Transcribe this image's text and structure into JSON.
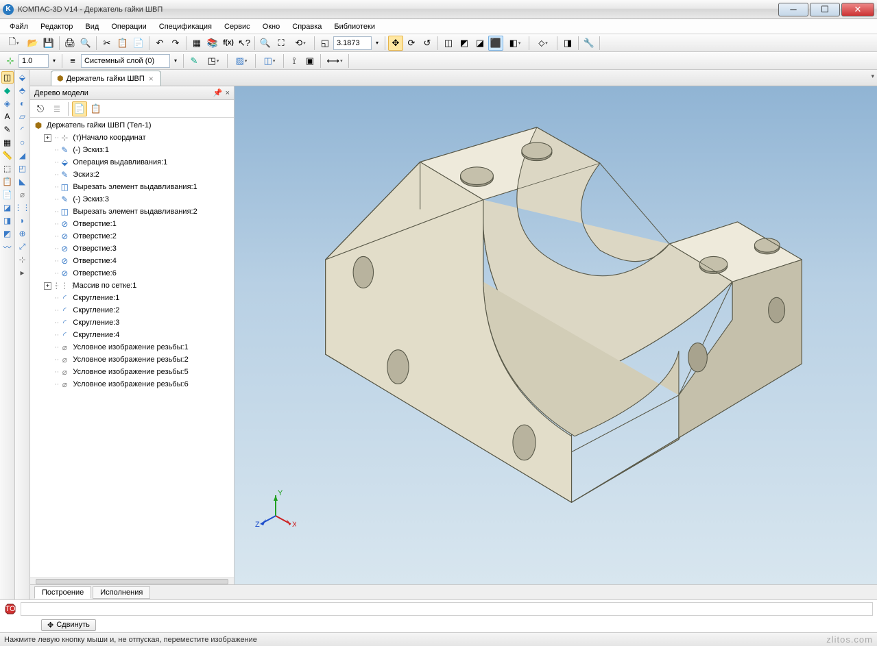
{
  "window": {
    "title": "КОМПАС-3D V14 - Держатель гайки ШВП"
  },
  "menu": [
    "Файл",
    "Редактор",
    "Вид",
    "Операции",
    "Спецификация",
    "Сервис",
    "Окно",
    "Справка",
    "Библиотеки"
  ],
  "toolbar1": {
    "zoom_value": "3.1873"
  },
  "toolbar2": {
    "scale_value": "1.0",
    "layer_value": "Системный слой (0)"
  },
  "doc_tab": {
    "label": "Держатель гайки ШВП"
  },
  "tree": {
    "header": "Дерево модели",
    "root": "Держатель гайки ШВП (Тел-1)",
    "items": [
      {
        "indent": 1,
        "exp": "+",
        "icon": "axis",
        "label": "(т)Начало координат",
        "color": "#888"
      },
      {
        "indent": 1,
        "exp": "",
        "icon": "sketch",
        "label": "(-) Эскиз:1",
        "color": "#3a7bc8"
      },
      {
        "indent": 1,
        "exp": "",
        "icon": "extrude",
        "label": "Операция выдавливания:1",
        "color": "#3a7bc8"
      },
      {
        "indent": 1,
        "exp": "",
        "icon": "sketch",
        "label": "Эскиз:2",
        "color": "#3a7bc8"
      },
      {
        "indent": 1,
        "exp": "",
        "icon": "cut",
        "label": "Вырезать элемент выдавливания:1",
        "color": "#3a7bc8"
      },
      {
        "indent": 1,
        "exp": "",
        "icon": "sketch",
        "label": "(-) Эскиз:3",
        "color": "#3a7bc8"
      },
      {
        "indent": 1,
        "exp": "",
        "icon": "cut",
        "label": "Вырезать элемент выдавливания:2",
        "color": "#3a7bc8"
      },
      {
        "indent": 1,
        "exp": "",
        "icon": "hole",
        "label": "Отверстие:1",
        "color": "#3a7bc8"
      },
      {
        "indent": 1,
        "exp": "",
        "icon": "hole",
        "label": "Отверстие:2",
        "color": "#3a7bc8"
      },
      {
        "indent": 1,
        "exp": "",
        "icon": "hole",
        "label": "Отверстие:3",
        "color": "#3a7bc8"
      },
      {
        "indent": 1,
        "exp": "",
        "icon": "hole",
        "label": "Отверстие:4",
        "color": "#3a7bc8"
      },
      {
        "indent": 1,
        "exp": "",
        "icon": "hole",
        "label": "Отверстие:6",
        "color": "#3a7bc8"
      },
      {
        "indent": 1,
        "exp": "+",
        "icon": "grid",
        "label": "Массив по сетке:1",
        "color": "#888"
      },
      {
        "indent": 1,
        "exp": "",
        "icon": "fillet",
        "label": "Скругление:1",
        "color": "#3a7bc8"
      },
      {
        "indent": 1,
        "exp": "",
        "icon": "fillet",
        "label": "Скругление:2",
        "color": "#3a7bc8"
      },
      {
        "indent": 1,
        "exp": "",
        "icon": "fillet",
        "label": "Скругление:3",
        "color": "#3a7bc8"
      },
      {
        "indent": 1,
        "exp": "",
        "icon": "fillet",
        "label": "Скругление:4",
        "color": "#3a7bc8"
      },
      {
        "indent": 1,
        "exp": "",
        "icon": "thread",
        "label": "Условное изображение резьбы:1",
        "color": "#888"
      },
      {
        "indent": 1,
        "exp": "",
        "icon": "thread",
        "label": "Условное изображение резьбы:2",
        "color": "#888"
      },
      {
        "indent": 1,
        "exp": "",
        "icon": "thread",
        "label": "Условное изображение резьбы:5",
        "color": "#888"
      },
      {
        "indent": 1,
        "exp": "",
        "icon": "thread",
        "label": "Условное изображение резьбы:6",
        "color": "#888"
      }
    ]
  },
  "bottom_tabs": [
    "Построение",
    "Исполнения"
  ],
  "move_button": "Сдвинуть",
  "statusbar": "Нажмите левую кнопку мыши и, не отпуская, переместите изображение",
  "watermark": "zlitos.com",
  "axis": {
    "x": "X",
    "y": "Y",
    "z": "Z"
  },
  "colors": {
    "viewport_top": "#90b4d4",
    "viewport_bottom": "#d8e6ef",
    "part_light": "#eeeadb",
    "part_mid": "#dcd7c4",
    "part_dark": "#c5c0ab",
    "part_edge": "#5a5a4a"
  }
}
